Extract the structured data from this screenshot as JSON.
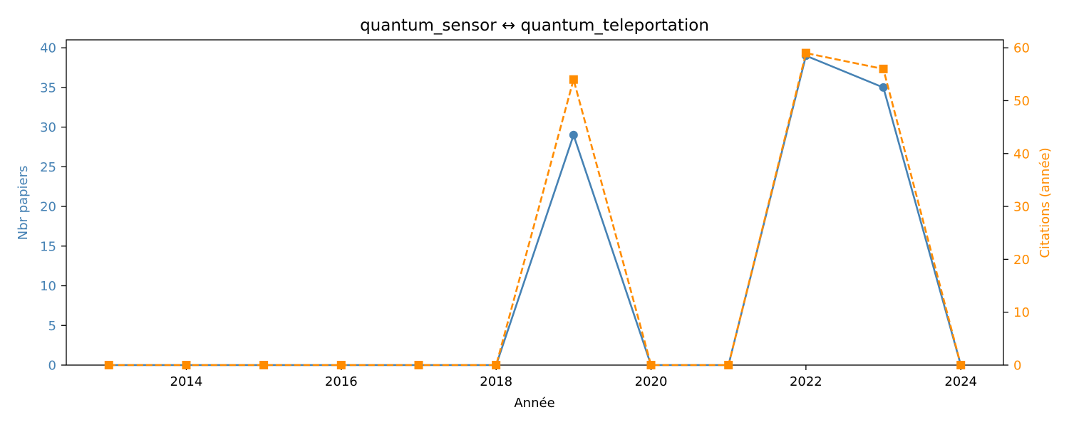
{
  "chart_data": {
    "type": "line",
    "title": "quantum_sensor  ↔  quantum_teleportation",
    "xlabel": "Année",
    "ylabel_left": "Nbr papiers",
    "ylabel_right": "Citations (année)",
    "x": [
      2013,
      2014,
      2015,
      2016,
      2017,
      2018,
      2019,
      2020,
      2021,
      2022,
      2023,
      2024
    ],
    "x_ticks": [
      2014,
      2016,
      2018,
      2020,
      2022,
      2024
    ],
    "x_tick_labels": [
      "2014",
      "2016",
      "2018",
      "2020",
      "2022",
      "2024"
    ],
    "xlim": [
      2012.45,
      2024.55
    ],
    "y_left_ticks": [
      0,
      5,
      10,
      15,
      20,
      25,
      30,
      35,
      40
    ],
    "y_left_tick_labels": [
      "0",
      "5",
      "10",
      "15",
      "20",
      "25",
      "30",
      "35",
      "40"
    ],
    "ylim_left": [
      0,
      41
    ],
    "y_right_ticks": [
      0,
      10,
      20,
      30,
      40,
      50,
      60
    ],
    "y_right_tick_labels": [
      "0",
      "10",
      "20",
      "30",
      "40",
      "50",
      "60"
    ],
    "ylim_right": [
      0,
      61.5
    ],
    "grid": false,
    "series": [
      {
        "axis": "left",
        "color": "#4682b4",
        "line_style": "solid",
        "marker": "circle",
        "values": [
          0,
          0,
          0,
          0,
          0,
          0,
          29,
          0,
          0,
          39,
          35,
          0
        ]
      },
      {
        "axis": "right",
        "color": "#ff8c00",
        "line_style": "dashed",
        "marker": "square",
        "values": [
          0,
          0,
          0,
          0,
          0,
          0,
          54,
          0,
          0,
          59,
          56,
          0
        ]
      }
    ],
    "colors": {
      "left_axis": "#4682b4",
      "right_axis": "#ff8c00",
      "frame": "#000000"
    }
  }
}
